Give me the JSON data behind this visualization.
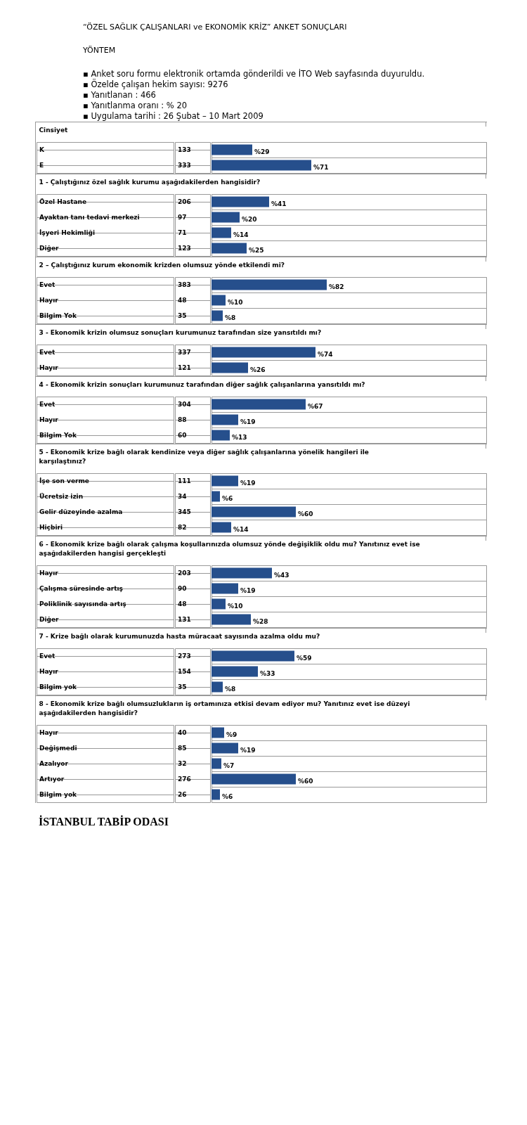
{
  "chart_data": [
    {
      "type": "other",
      "title": "“ÖZEL SAĞLIK ÇALIŞANLARI ve EKONOMİK KRİZ” ANKET SONUÇLARI",
      "subtitle": "YÖNTEM",
      "annotations": [
        "▪ Anket soru formu elektronik ortamda gönderildi ve İTO Web sayfasında duyuruldu.",
        "▪ Özelde çalışan hekim sayısı: 9276",
        "▪ Yanıtlanan : 466",
        "▪ Yanıtlanma oranı : % 20",
        "▪ Uygulama tarihi : 26 Şubat – 10 Mart 2009"
      ]
    },
    {
      "type": "bar",
      "orientation": "horizontal",
      "title": "Cinsiyet",
      "color": "#264f8c",
      "categories": [
        "K",
        "E"
      ],
      "y2_categories": [
        "133",
        "333"
      ],
      "values": [
        29,
        71
      ],
      "value_labels": [
        "%29",
        "%71"
      ]
    },
    {
      "type": "bar",
      "orientation": "horizontal",
      "title": "1 - Çalıştığınız özel sağlık kurumu aşağıdakilerden hangisidir?",
      "color": "#264f8c",
      "categories": [
        "Özel Hastane",
        "Ayaktan tanı tedavi merkezi",
        "İşyeri Hekimliği",
        "Diğer"
      ],
      "y2_categories": [
        "206",
        "97",
        "71",
        "123"
      ],
      "values": [
        41,
        20,
        14,
        25
      ],
      "value_labels": [
        "%41",
        "%20",
        "%14",
        "%25"
      ]
    },
    {
      "type": "bar",
      "orientation": "horizontal",
      "title": "2 – Çalıştığınız kurum ekonomik krizden olumsuz yönde etkilendi mi?",
      "color": "#264f8c",
      "categories": [
        "Evet",
        "Hayır",
        "Bilgim Yok"
      ],
      "y2_categories": [
        "383",
        "48",
        "35"
      ],
      "values": [
        82,
        10,
        8
      ],
      "value_labels": [
        "%82",
        "%10",
        "%8"
      ]
    },
    {
      "type": "bar",
      "orientation": "horizontal",
      "title": "3 - Ekonomik krizin olumsuz sonuçları kurumunuz tarafından size yansıtıldı mı?",
      "color": "#264f8c",
      "categories": [
        "Evet",
        "Hayır"
      ],
      "y2_categories": [
        "337",
        "121"
      ],
      "values": [
        74,
        26
      ],
      "value_labels": [
        "%74",
        "%26"
      ]
    },
    {
      "type": "bar",
      "orientation": "horizontal",
      "title": "4 - Ekonomik krizin sonuçları kurumunuz tarafından diğer sağlık çalışanlarına yansıtıldı mı?",
      "color": "#264f8c",
      "categories": [
        "Evet",
        "Hayır",
        "Bilgim Yok"
      ],
      "y2_categories": [
        "304",
        "88",
        "60"
      ],
      "values": [
        67,
        19,
        13
      ],
      "value_labels": [
        "%67",
        "%19",
        "%13"
      ]
    },
    {
      "type": "bar",
      "orientation": "horizontal",
      "title": "5 - Ekonomik krize bağlı olarak kendinize veya diğer sağlık çalışanlarına yönelik hangileri ile karşılaştınız?",
      "color": "#264f8c",
      "categories": [
        "İşe son verme",
        "Ücretsiz izin",
        "Gelir düzeyinde azalma",
        "Hiçbiri"
      ],
      "y2_categories": [
        "111",
        "34",
        "345",
        "82"
      ],
      "values": [
        19,
        6,
        60,
        14
      ],
      "value_labels": [
        "%19",
        "%6",
        "%60",
        "%14"
      ]
    },
    {
      "type": "bar",
      "orientation": "horizontal",
      "title": "6 - Ekonomik krize bağlı olarak çalışma koşullarınızda olumsuz yönde değişiklik oldu mu? Yanıtınız evet ise aşağıdakilerden hangisi gerçekleşti",
      "color": "#264f8c",
      "categories": [
        "Hayır",
        "Çalışma süresinde artış",
        "Poliklinik sayısında artış",
        "Diğer"
      ],
      "y2_categories": [
        "203",
        "90",
        "48",
        "131"
      ],
      "values": [
        43,
        19,
        10,
        28
      ],
      "value_labels": [
        "%43",
        "%19",
        "%10",
        "%28"
      ]
    },
    {
      "type": "bar",
      "orientation": "horizontal",
      "title": "7 - Krize bağlı olarak kurumunuzda hasta müracaat sayısında azalma oldu mu?",
      "color": "#264f8c",
      "categories": [
        "Evet",
        "Hayır",
        "Bilgim yok"
      ],
      "y2_categories": [
        "273",
        "154",
        "35"
      ],
      "values": [
        59,
        33,
        8
      ],
      "value_labels": [
        "%59",
        "%33",
        "%8"
      ]
    },
    {
      "type": "bar",
      "orientation": "horizontal",
      "title": "8 - Ekonomik krize bağlı olumsuzlukların iş ortamınıza etkisi devam ediyor mu? Yanıtınız evet ise düzeyi aşağıdakilerden hangisidir?",
      "color": "#264f8c",
      "categories": [
        "Hayır",
        "Değişmedi",
        "Azalıyor",
        "Artıyor",
        "Bilgim yok"
      ],
      "y2_categories": [
        "40",
        "85",
        "32",
        "276",
        "26"
      ],
      "values": [
        9,
        19,
        7,
        60,
        6
      ],
      "value_labels": [
        "%9",
        "%19",
        "%7",
        "%60",
        "%6"
      ]
    },
    {
      "type": "other",
      "title": "İSTANBUL TABİP ODASI"
    }
  ]
}
